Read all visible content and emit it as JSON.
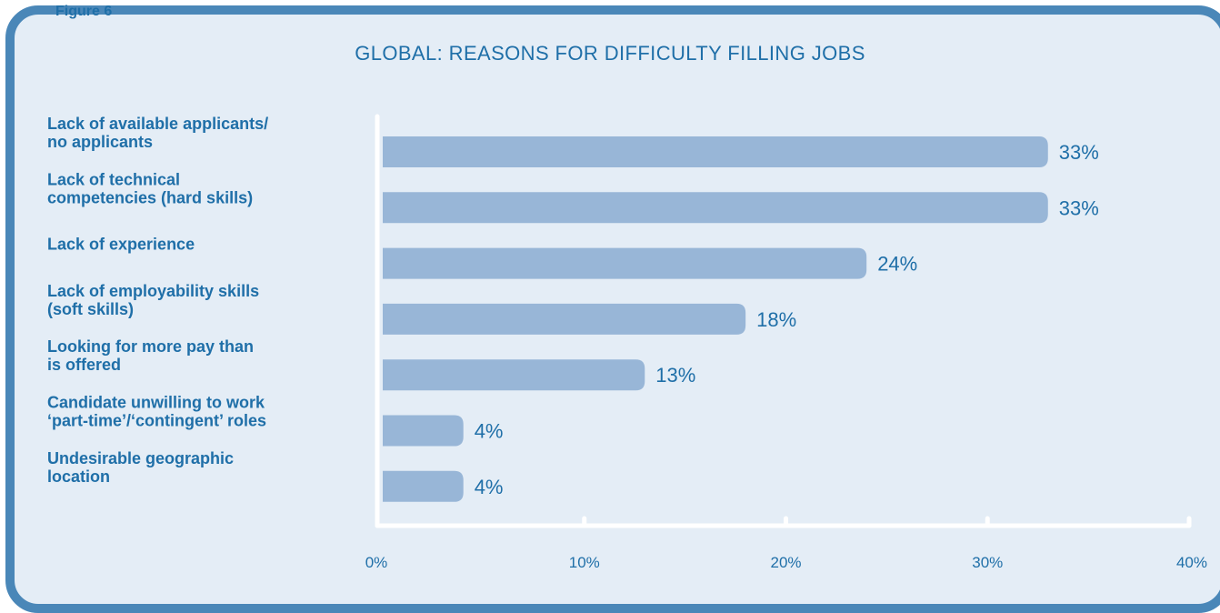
{
  "figure_label": "Figure 6",
  "chart_data": {
    "type": "bar",
    "orientation": "horizontal",
    "title": "GLOBAL: REASONS FOR DIFFICULTY FILLING JOBS",
    "categories": [
      [
        "Lack of available applicants/",
        "no applicants"
      ],
      [
        "Lack of technical",
        "competencies (hard skills)"
      ],
      [
        "Lack of experience"
      ],
      [
        "Lack of employability skills",
        "(soft skills)"
      ],
      [
        "Looking for more pay than",
        "is offered"
      ],
      [
        "Candidate unwilling to work",
        "‘part-time’/‘contingent’ roles"
      ],
      [
        "Undesirable geographic",
        "location"
      ]
    ],
    "values": [
      33,
      33,
      24,
      18,
      13,
      4,
      4
    ],
    "value_labels": [
      "33%",
      "33%",
      "24%",
      "18%",
      "13%",
      "4%",
      "4%"
    ],
    "xlim": [
      0,
      40
    ],
    "xticks": [
      0,
      10,
      20,
      30,
      40
    ],
    "xtick_labels": [
      "0%",
      "10%",
      "20%",
      "30%",
      "40%"
    ],
    "grid": false,
    "colors": {
      "bar": "#98b6d7",
      "text": "#1f6fa8",
      "frame": "#4a87b8",
      "background": "#e4edf6",
      "axis": "#ffffff"
    }
  }
}
